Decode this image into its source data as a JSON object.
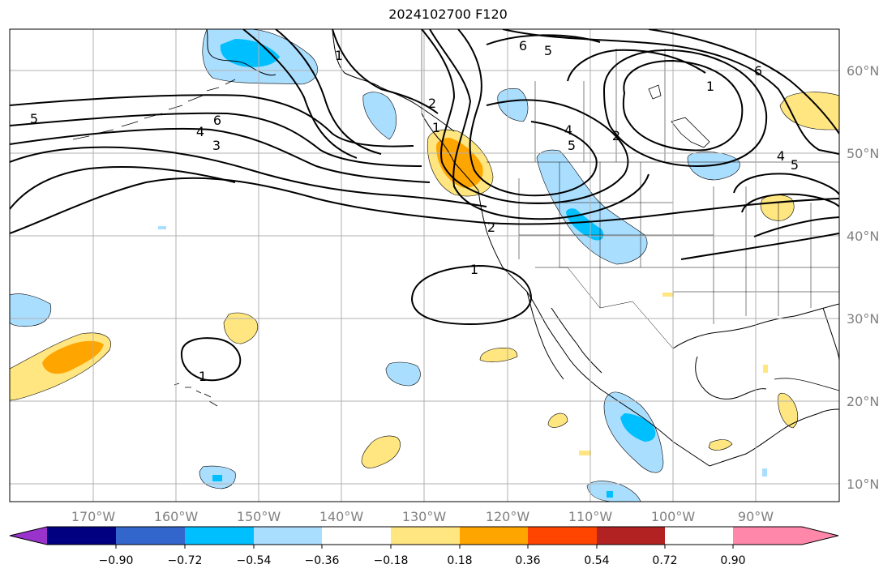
{
  "title": "2024102700 F120",
  "map": {
    "lon_ticks": [
      "170°W",
      "160°W",
      "150°W",
      "140°W",
      "130°W",
      "120°W",
      "110°W",
      "100°W",
      "90°W"
    ],
    "lat_ticks": [
      "60°N",
      "50°N",
      "40°N",
      "30°N",
      "20°N",
      "10°N"
    ],
    "contour_labels": [
      "1",
      "5",
      "6",
      "4",
      "3",
      "2",
      "1",
      "6",
      "5",
      "4",
      "5",
      "2",
      "1",
      "6",
      "4",
      "5",
      "2",
      "1",
      "1"
    ]
  },
  "colorbar": {
    "colors": [
      "#9933cc",
      "#000080",
      "#3366cc",
      "#00bfff",
      "#aadeff",
      "#ffffff",
      "#ffe680",
      "#ffa500",
      "#ff4500",
      "#b22222",
      "#ff88aa"
    ],
    "tick_labels": [
      "−0.90",
      "−0.72",
      "−0.54",
      "−0.36",
      "−0.18",
      "0.18",
      "0.36",
      "0.54",
      "0.72",
      "0.90"
    ]
  },
  "colors": {
    "light_blue": "#aadeff",
    "blue": "#00bfff",
    "yellow": "#ffe680",
    "orange": "#ffa500",
    "grid": "#b0b0b0",
    "tick_text": "#808080"
  }
}
